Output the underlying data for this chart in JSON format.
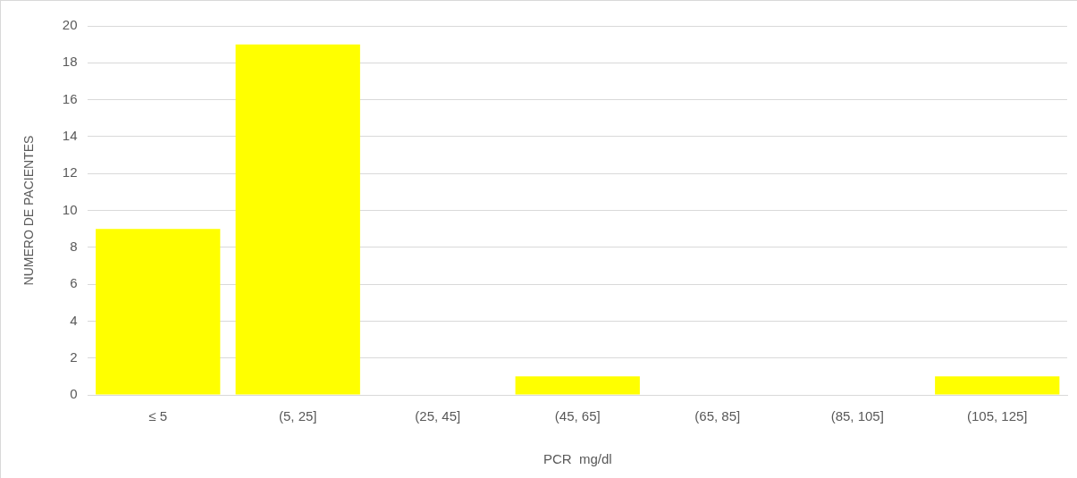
{
  "chart_data": {
    "type": "bar",
    "xlabel": "PCR  mg/dl",
    "ylabel": "NUMERO DE PACIENTES",
    "categories": [
      "≤ 5",
      "(5, 25]",
      "(25, 45]",
      "(45, 65]",
      "(65, 85]",
      "(85, 105]",
      "(105, 125]"
    ],
    "values": [
      9,
      19,
      0,
      1,
      0,
      0,
      1
    ],
    "color": "#ffff00",
    "ylim": [
      0,
      20
    ],
    "yticks": [
      0,
      2,
      4,
      6,
      8,
      10,
      12,
      14,
      16,
      18,
      20
    ],
    "grid": "y",
    "legend": false
  }
}
